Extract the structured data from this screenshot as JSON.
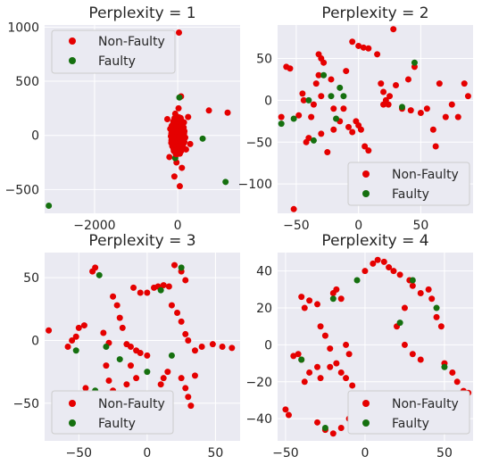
{
  "legend": {
    "non_faulty": "Non-Faulty",
    "faulty": "Faulty"
  },
  "colors": {
    "non_faulty": "#e50000",
    "faulty": "#15700f",
    "faded": "#f3bcbc",
    "plot_bg": "#eaeaf2",
    "grid": "#ffffff"
  },
  "chart_data": [
    {
      "type": "scatter",
      "title": "Perplexity = 1",
      "xlim": [
        -3200,
        1500
      ],
      "ylim": [
        -720,
        1020
      ],
      "xticks": [
        -2000,
        0
      ],
      "yticks": [
        -500,
        0,
        500,
        1000
      ],
      "legend_position": "upper-left",
      "grid": true,
      "series": [
        {
          "name": "Non-Faulty",
          "points": [
            [
              30,
              950
            ],
            [
              80,
              360
            ],
            [
              750,
              230
            ],
            [
              1200,
              210
            ],
            [
              250,
              170
            ],
            [
              -250,
              150
            ],
            [
              300,
              -80
            ],
            [
              -200,
              -200
            ],
            [
              50,
              -470
            ],
            [
              -80,
              -380
            ],
            [
              100,
              -300
            ],
            [
              200,
              -130
            ],
            [
              -100,
              100
            ],
            [
              -50,
              -50
            ],
            [
              0,
              0
            ],
            [
              100,
              50
            ],
            [
              -150,
              20
            ],
            [
              60,
              -150
            ],
            [
              -60,
              200
            ],
            [
              150,
              120
            ],
            [
              -120,
              -100
            ],
            [
              20,
              250
            ],
            [
              -30,
              -250
            ],
            [
              180,
              -20
            ],
            [
              -180,
              60
            ]
          ]
        },
        {
          "name": "Faulty",
          "points": [
            [
              -3100,
              -650
            ],
            [
              1150,
              -430
            ],
            [
              600,
              -30
            ],
            [
              40,
              350
            ],
            [
              -60,
              -210
            ],
            [
              120,
              -60
            ]
          ]
        }
      ]
    },
    {
      "type": "scatter",
      "title": "Perplexity = 2",
      "xlim": [
        -65,
        92
      ],
      "ylim": [
        -135,
        90
      ],
      "xticks": [
        -50,
        0,
        50
      ],
      "yticks": [
        -100,
        -50,
        0,
        50
      ],
      "legend_position": "lower-right",
      "grid": true,
      "series": [
        {
          "name": "Non-Faulty",
          "points": [
            [
              -52,
              -130
            ],
            [
              -58,
              40
            ],
            [
              -55,
              38
            ],
            [
              -62,
              -20
            ],
            [
              -48,
              -18
            ],
            [
              -44,
              0
            ],
            [
              -45,
              8
            ],
            [
              -32,
              55
            ],
            [
              -30,
              50
            ],
            [
              -32,
              30
            ],
            [
              -28,
              45
            ],
            [
              -34,
              20
            ],
            [
              -30,
              5
            ],
            [
              -36,
              -5
            ],
            [
              -38,
              -20
            ],
            [
              -40,
              -45
            ],
            [
              -42,
              -50
            ],
            [
              -30,
              -40
            ],
            [
              -25,
              -62
            ],
            [
              -20,
              -35
            ],
            [
              -15,
              -25
            ],
            [
              -22,
              25
            ],
            [
              -20,
              -10
            ],
            [
              -10,
              35
            ],
            [
              -12,
              -10
            ],
            [
              -8,
              -32
            ],
            [
              -5,
              -38
            ],
            [
              -2,
              -25
            ],
            [
              0,
              -30
            ],
            [
              2,
              -35
            ],
            [
              5,
              -55
            ],
            [
              8,
              -60
            ],
            [
              -5,
              70
            ],
            [
              0,
              65
            ],
            [
              4,
              63
            ],
            [
              8,
              62
            ],
            [
              15,
              55
            ],
            [
              28,
              85
            ],
            [
              18,
              20
            ],
            [
              20,
              -5
            ],
            [
              22,
              0
            ],
            [
              24,
              -5
            ],
            [
              25,
              5
            ],
            [
              20,
              10
            ],
            [
              30,
              18
            ],
            [
              40,
              25
            ],
            [
              45,
              40
            ],
            [
              50,
              -15
            ],
            [
              55,
              -10
            ],
            [
              60,
              -35
            ],
            [
              62,
              -55
            ],
            [
              65,
              20
            ],
            [
              70,
              -20
            ],
            [
              85,
              20
            ],
            [
              88,
              5
            ],
            [
              80,
              -20
            ],
            [
              75,
              -5
            ],
            [
              35,
              -10
            ],
            [
              42,
              -12
            ]
          ]
        },
        {
          "name": "Faulty",
          "points": [
            [
              -62,
              -28
            ],
            [
              -52,
              -22
            ],
            [
              -40,
              0
            ],
            [
              -36,
              -48
            ],
            [
              -22,
              5
            ],
            [
              -28,
              30
            ],
            [
              -18,
              -22
            ],
            [
              -12,
              5
            ],
            [
              -15,
              15
            ],
            [
              45,
              45
            ],
            [
              35,
              -8
            ]
          ]
        }
      ]
    },
    {
      "type": "scatter",
      "title": "Perplexity = 3",
      "xlim": [
        -75,
        68
      ],
      "ylim": [
        -80,
        70
      ],
      "xticks": [
        -50,
        0,
        50
      ],
      "yticks": [
        -50,
        0,
        50
      ],
      "legend_position": "lower-left",
      "grid": true,
      "series": [
        {
          "name": "Non-Faulty",
          "points": [
            [
              -72,
              8
            ],
            [
              -58,
              -5
            ],
            [
              -55,
              0
            ],
            [
              -52,
              3
            ],
            [
              -50,
              10
            ],
            [
              -46,
              12
            ],
            [
              -40,
              55
            ],
            [
              -38,
              58
            ],
            [
              -32,
              6
            ],
            [
              -28,
              -2
            ],
            [
              -25,
              35
            ],
            [
              -22,
              28
            ],
            [
              -20,
              18
            ],
            [
              -18,
              10
            ],
            [
              -15,
              -3
            ],
            [
              -12,
              -5
            ],
            [
              -8,
              -8
            ],
            [
              -5,
              -10
            ],
            [
              0,
              -12
            ],
            [
              -10,
              42
            ],
            [
              -5,
              38
            ],
            [
              0,
              38
            ],
            [
              5,
              42
            ],
            [
              8,
              43
            ],
            [
              12,
              44
            ],
            [
              16,
              43
            ],
            [
              20,
              60
            ],
            [
              25,
              55
            ],
            [
              28,
              48
            ],
            [
              18,
              28
            ],
            [
              22,
              22
            ],
            [
              25,
              15
            ],
            [
              28,
              5
            ],
            [
              30,
              0
            ],
            [
              35,
              -8
            ],
            [
              40,
              -5
            ],
            [
              48,
              -3
            ],
            [
              55,
              -5
            ],
            [
              62,
              -6
            ],
            [
              -30,
              -20
            ],
            [
              -28,
              -32
            ],
            [
              -25,
              -40
            ],
            [
              -20,
              -45
            ],
            [
              -18,
              -52
            ],
            [
              -15,
              -35
            ],
            [
              -12,
              -20
            ],
            [
              -8,
              -30
            ],
            [
              -5,
              -45
            ],
            [
              0,
              -48
            ],
            [
              5,
              -50
            ],
            [
              8,
              -45
            ],
            [
              10,
              -35
            ],
            [
              12,
              -30
            ],
            [
              15,
              -25
            ],
            [
              25,
              -30
            ],
            [
              28,
              -38
            ],
            [
              30,
              -45
            ],
            [
              32,
              -52
            ],
            [
              35,
              -28
            ],
            [
              -40,
              -45
            ],
            [
              -45,
              -38
            ]
          ]
        },
        {
          "name": "Faulty",
          "points": [
            [
              -52,
              -8
            ],
            [
              -38,
              -40
            ],
            [
              -35,
              52
            ],
            [
              -30,
              -5
            ],
            [
              -20,
              -15
            ],
            [
              0,
              -25
            ],
            [
              18,
              -12
            ],
            [
              25,
              58
            ],
            [
              10,
              40
            ]
          ]
        }
      ]
    },
    {
      "type": "scatter",
      "title": "Perplexity = 4",
      "xlim": [
        -55,
        68
      ],
      "ylim": [
        -52,
        50
      ],
      "xticks": [
        -50,
        0,
        50
      ],
      "yticks": [
        -40,
        -20,
        0,
        20,
        40
      ],
      "legend_position": "lower-right",
      "grid": true,
      "series": [
        {
          "name": "Non-Faulty",
          "points": [
            [
              -50,
              -35
            ],
            [
              -48,
              -38
            ],
            [
              -45,
              -6
            ],
            [
              -42,
              -5
            ],
            [
              -40,
              -8
            ],
            [
              -38,
              -20
            ],
            [
              -35,
              -15
            ],
            [
              -30,
              -12
            ],
            [
              -28,
              -18
            ],
            [
              -22,
              -12
            ],
            [
              -18,
              -10
            ],
            [
              -15,
              -15
            ],
            [
              -12,
              -18
            ],
            [
              -40,
              26
            ],
            [
              -38,
              20
            ],
            [
              -35,
              24
            ],
            [
              -30,
              22
            ],
            [
              -28,
              10
            ],
            [
              -25,
              5
            ],
            [
              -22,
              -2
            ],
            [
              -20,
              28
            ],
            [
              -18,
              30
            ],
            [
              -15,
              25
            ],
            [
              -12,
              0
            ],
            [
              -10,
              -5
            ],
            [
              -8,
              -22
            ],
            [
              -5,
              -30
            ],
            [
              -2,
              -35
            ],
            [
              0,
              -40
            ],
            [
              0,
              40
            ],
            [
              5,
              44
            ],
            [
              8,
              46
            ],
            [
              12,
              45
            ],
            [
              15,
              42
            ],
            [
              18,
              40
            ],
            [
              22,
              38
            ],
            [
              25,
              20
            ],
            [
              28,
              35
            ],
            [
              30,
              32
            ],
            [
              35,
              28
            ],
            [
              40,
              30
            ],
            [
              42,
              25
            ],
            [
              45,
              15
            ],
            [
              48,
              10
            ],
            [
              50,
              -10
            ],
            [
              55,
              -15
            ],
            [
              58,
              -20
            ],
            [
              62,
              -25
            ],
            [
              65,
              -26
            ],
            [
              20,
              10
            ],
            [
              25,
              0
            ],
            [
              30,
              -5
            ],
            [
              35,
              -8
            ],
            [
              -30,
              -42
            ],
            [
              -25,
              -46
            ],
            [
              -20,
              -48
            ],
            [
              -15,
              -45
            ],
            [
              -10,
              -40
            ]
          ]
        },
        {
          "name": "Faulty",
          "points": [
            [
              -40,
              -8
            ],
            [
              -25,
              -45
            ],
            [
              -20,
              25
            ],
            [
              -5,
              35
            ],
            [
              0,
              -33
            ],
            [
              22,
              12
            ],
            [
              30,
              35
            ],
            [
              45,
              20
            ],
            [
              50,
              -12
            ]
          ]
        }
      ]
    }
  ]
}
